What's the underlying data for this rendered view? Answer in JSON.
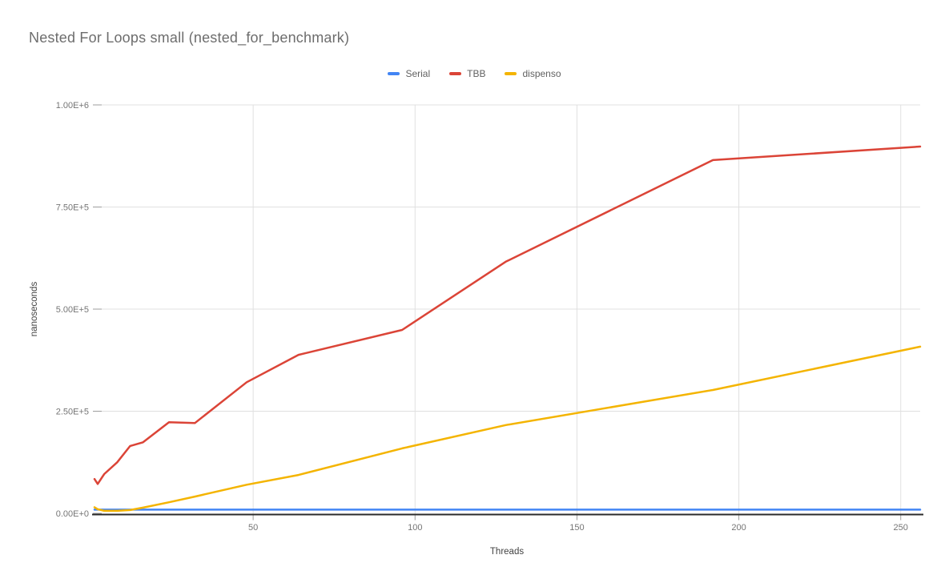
{
  "title": "Nested For Loops small (nested_for_benchmark)",
  "legend": [
    {
      "label": "Serial",
      "color": "#4285F4"
    },
    {
      "label": "TBB",
      "color": "#DB4437"
    },
    {
      "label": "dispenso",
      "color": "#F4B400"
    }
  ],
  "axes": {
    "x": {
      "title": "Threads",
      "ticks": [
        {
          "label": "50",
          "value": 50
        },
        {
          "label": "100",
          "value": 100
        },
        {
          "label": "150",
          "value": 150
        },
        {
          "label": "200",
          "value": 200
        },
        {
          "label": "250",
          "value": 250
        }
      ]
    },
    "y": {
      "title": "nanoseconds",
      "ticks": [
        {
          "label": "0.00E+0",
          "value": 0
        },
        {
          "label": "2.50E+5",
          "value": 250000
        },
        {
          "label": "5.00E+5",
          "value": 500000
        },
        {
          "label": "7.50E+5",
          "value": 750000
        },
        {
          "label": "1.00E+6",
          "value": 1000000
        }
      ]
    }
  },
  "chart_data": {
    "type": "line",
    "title": "Nested For Loops small (nested_for_benchmark)",
    "xlabel": "Threads",
    "ylabel": "nanoseconds",
    "x": [
      1,
      2,
      4,
      8,
      12,
      16,
      24,
      32,
      48,
      64,
      96,
      128,
      192,
      256
    ],
    "series": [
      {
        "name": "Serial",
        "color": "#4285F4",
        "values": [
          9000,
          9000,
          9000,
          9000,
          9000,
          9000,
          9000,
          9000,
          9000,
          9000,
          9000,
          9000,
          9000,
          9000
        ]
      },
      {
        "name": "TBB",
        "color": "#DB4437",
        "values": [
          84000,
          72000,
          96000,
          125000,
          165000,
          174000,
          223000,
          221000,
          321000,
          388000,
          449000,
          616000,
          865000,
          898000
        ]
      },
      {
        "name": "dispenso",
        "color": "#F4B400",
        "values": [
          15000,
          10000,
          6000,
          6000,
          8000,
          14000,
          27000,
          41000,
          70000,
          94000,
          159000,
          216000,
          302000,
          408000
        ]
      }
    ],
    "xlim": [
      1,
      256
    ],
    "ylim": [
      0,
      1000000
    ],
    "grid": true,
    "legend_position": "top-center"
  }
}
